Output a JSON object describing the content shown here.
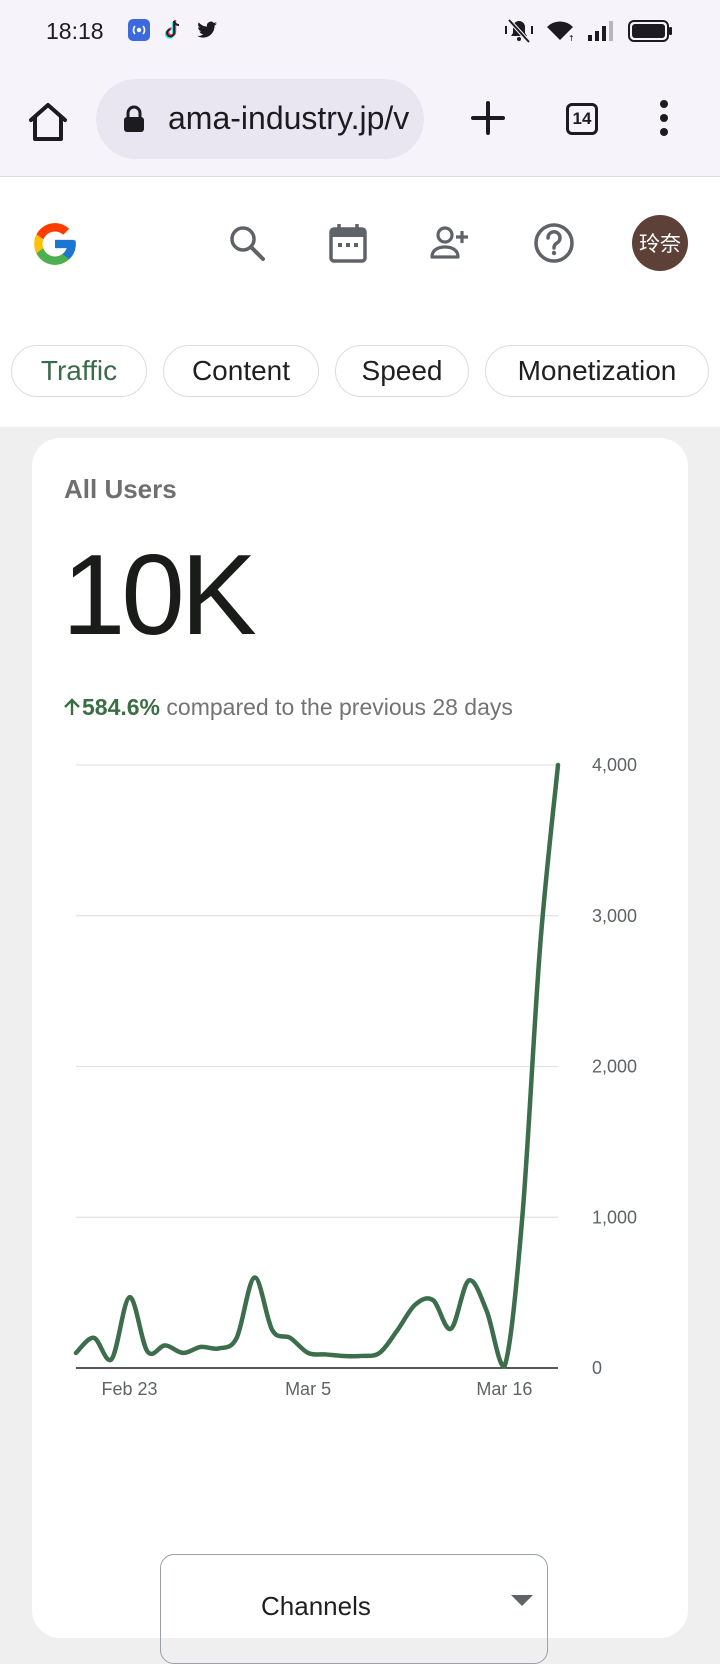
{
  "status_bar": {
    "time": "18:18",
    "left_icons": [
      "cast-icon",
      "tiktok-icon",
      "twitter-icon"
    ],
    "right_icons": [
      "muted-bell-icon",
      "wifi-icon",
      "signal-icon",
      "battery-icon"
    ]
  },
  "browser": {
    "url": "ama-industry.jp/v",
    "tab_count": "14"
  },
  "app_bar": {
    "avatar_text": "玲奈"
  },
  "chips": [
    {
      "label": "Traffic",
      "active": true
    },
    {
      "label": "Content",
      "active": false
    },
    {
      "label": "Speed",
      "active": false
    },
    {
      "label": "Monetization",
      "active": false
    }
  ],
  "card": {
    "title": "All Users",
    "value": "10K",
    "change": "584.6%",
    "change_text": " compared to the previous 28 days"
  },
  "colors": {
    "line": "#3c6e4b",
    "accent": "#3a6b4a",
    "avatar_bg": "#5d4037"
  },
  "chart_data": {
    "type": "line",
    "x_tick_labels": [
      "Feb 23",
      "Mar 5",
      "Mar 16"
    ],
    "y_tick_labels": [
      "0",
      "1,000",
      "2,000",
      "3,000",
      "4,000"
    ],
    "ylim": [
      0,
      4000
    ],
    "grid": true,
    "y_axis_position": "right",
    "series": [
      {
        "x": [
          "Feb 20",
          "Feb 21",
          "Feb 22",
          "Feb 23",
          "Feb 24",
          "Feb 25",
          "Feb 26",
          "Feb 27",
          "Feb 28",
          "Mar 1",
          "Mar 2",
          "Mar 3",
          "Mar 4",
          "Mar 5",
          "Mar 6",
          "Mar 7",
          "Mar 8",
          "Mar 9",
          "Mar 10",
          "Mar 11",
          "Mar 12",
          "Mar 13",
          "Mar 14",
          "Mar 15",
          "Mar 16",
          "Mar 17",
          "Mar 18",
          "Mar 19"
        ],
        "values": [
          100,
          200,
          60,
          470,
          110,
          150,
          100,
          140,
          130,
          200,
          600,
          250,
          200,
          100,
          90,
          80,
          80,
          100,
          250,
          420,
          450,
          260,
          580,
          380,
          10,
          1000,
          2800,
          4000
        ]
      }
    ]
  },
  "dropdown": {
    "label": "Channels"
  }
}
